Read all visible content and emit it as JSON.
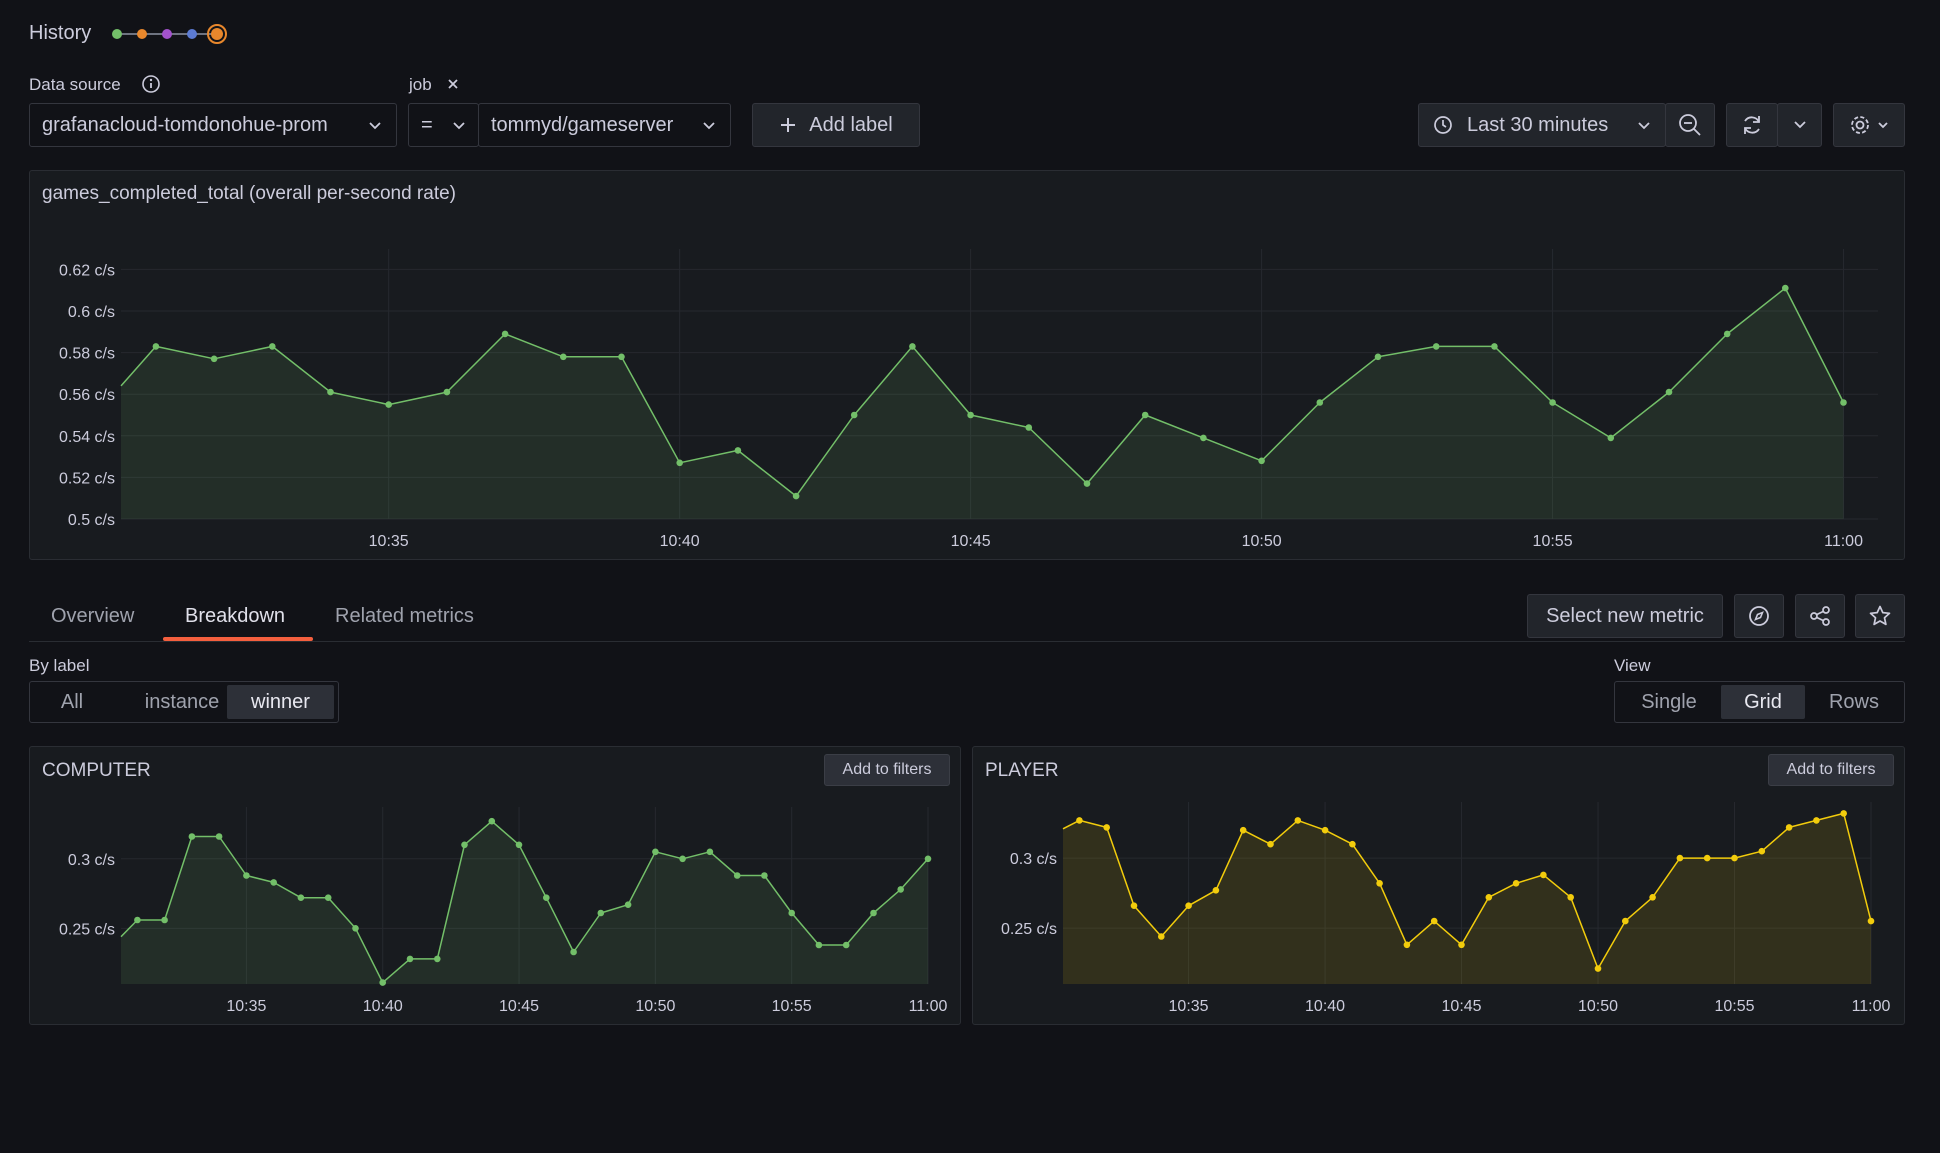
{
  "header": {
    "history_label": "History",
    "history_colors": [
      "#73bf69",
      "#e8872c",
      "#a352cc",
      "#5c7bd3",
      "#e8872c"
    ]
  },
  "filters": {
    "datasource_label": "Data source",
    "datasource_value": "grafanacloud-tomdonohue-prom",
    "job_label": "job",
    "operator": "=",
    "job_value": "tommyd/gameserver",
    "add_label": "Add label"
  },
  "time": {
    "range_label": "Last 30 minutes"
  },
  "main_panel": {
    "title": "games_completed_total (overall per-second rate)",
    "color": "#73bf69",
    "chart_data": {
      "type": "line",
      "y_ticks": [
        "0.5 c/s",
        "0.52 c/s",
        "0.54 c/s",
        "0.56 c/s",
        "0.58 c/s",
        "0.6 c/s",
        "0.62 c/s"
      ],
      "ylim": [
        0.5,
        0.625
      ],
      "x_ticks": [
        "10:35",
        "10:40",
        "10:45",
        "10:50",
        "10:55",
        "11:00"
      ],
      "x_minutes": [
        35,
        40,
        45,
        50,
        55,
        60
      ],
      "x_start": 30.4,
      "x_end": 60.3,
      "series": [
        {
          "x": [
            30.4,
            31,
            32,
            33,
            34,
            35,
            36,
            37,
            38,
            39,
            40,
            41,
            42,
            43,
            44,
            45,
            46,
            47,
            48,
            49,
            50,
            51,
            52,
            53,
            54,
            55,
            56,
            57,
            58,
            59,
            60
          ],
          "y": [
            0.564,
            0.583,
            0.577,
            0.583,
            0.561,
            0.555,
            0.561,
            0.589,
            0.578,
            0.578,
            0.527,
            0.533,
            0.511,
            0.55,
            0.583,
            0.55,
            0.544,
            0.517,
            0.55,
            0.539,
            0.528,
            0.556,
            0.578,
            0.583,
            0.583,
            0.556,
            0.539,
            0.561,
            0.589,
            0.611,
            0.556
          ]
        }
      ]
    }
  },
  "tabs": {
    "items": [
      "Overview",
      "Breakdown",
      "Related metrics"
    ],
    "active": 1,
    "select_metric": "Select new metric"
  },
  "by_label": {
    "title": "By label",
    "options": [
      "All",
      "instance",
      "winner"
    ],
    "active": 2
  },
  "view": {
    "title": "View",
    "options": [
      "Single",
      "Grid",
      "Rows"
    ],
    "active": 1
  },
  "panels": [
    {
      "title": "COMPUTER",
      "button": "Add to filters",
      "color": "#73bf69",
      "chart_data": {
        "type": "line",
        "y_ticks": [
          "0.25 c/s",
          "0.3 c/s"
        ],
        "ylim": [
          0.21,
          0.33
        ],
        "x_ticks": [
          "10:35",
          "10:40",
          "10:45",
          "10:50",
          "10:55",
          "11:00"
        ],
        "x_minutes": [
          35,
          40,
          45,
          50,
          55,
          60
        ],
        "x_start": 30.4,
        "x_end": 60.0,
        "series": [
          {
            "x": [
              30.4,
              31,
              32,
              33,
              34,
              35,
              36,
              37,
              38,
              39,
              40,
              41,
              42,
              43,
              44,
              45,
              46,
              47,
              48,
              49,
              50,
              51,
              52,
              53,
              54,
              55,
              56,
              57,
              58,
              59,
              60
            ],
            "y": [
              0.244,
              0.256,
              0.256,
              0.316,
              0.316,
              0.288,
              0.283,
              0.272,
              0.272,
              0.25,
              0.211,
              0.228,
              0.228,
              0.31,
              0.327,
              0.31,
              0.272,
              0.233,
              0.261,
              0.267,
              0.305,
              0.3,
              0.305,
              0.288,
              0.288,
              0.261,
              0.238,
              0.238,
              0.261,
              0.278,
              0.3
            ]
          }
        ]
      }
    },
    {
      "title": "PLAYER",
      "button": "Add to filters",
      "color": "#f2cc0c",
      "chart_data": {
        "type": "line",
        "y_ticks": [
          "0.25 c/s",
          "0.3 c/s"
        ],
        "ylim": [
          0.21,
          0.333
        ],
        "x_ticks": [
          "10:35",
          "10:40",
          "10:45",
          "10:50",
          "10:55",
          "11:00"
        ],
        "x_minutes": [
          35,
          40,
          45,
          50,
          55,
          60
        ],
        "x_start": 30.4,
        "x_end": 60.0,
        "series": [
          {
            "x": [
              30.4,
              31,
              32,
              33,
              34,
              35,
              36,
              37,
              38,
              39,
              40,
              41,
              42,
              43,
              44,
              45,
              46,
              47,
              48,
              49,
              50,
              51,
              52,
              53,
              54,
              55,
              56,
              57,
              58,
              59,
              60
            ],
            "y": [
              0.321,
              0.327,
              0.322,
              0.266,
              0.244,
              0.266,
              0.277,
              0.32,
              0.31,
              0.327,
              0.32,
              0.31,
              0.282,
              0.238,
              0.255,
              0.238,
              0.272,
              0.282,
              0.288,
              0.272,
              0.221,
              0.255,
              0.272,
              0.3,
              0.3,
              0.3,
              0.305,
              0.322,
              0.327,
              0.332,
              0.255
            ]
          }
        ]
      }
    }
  ]
}
